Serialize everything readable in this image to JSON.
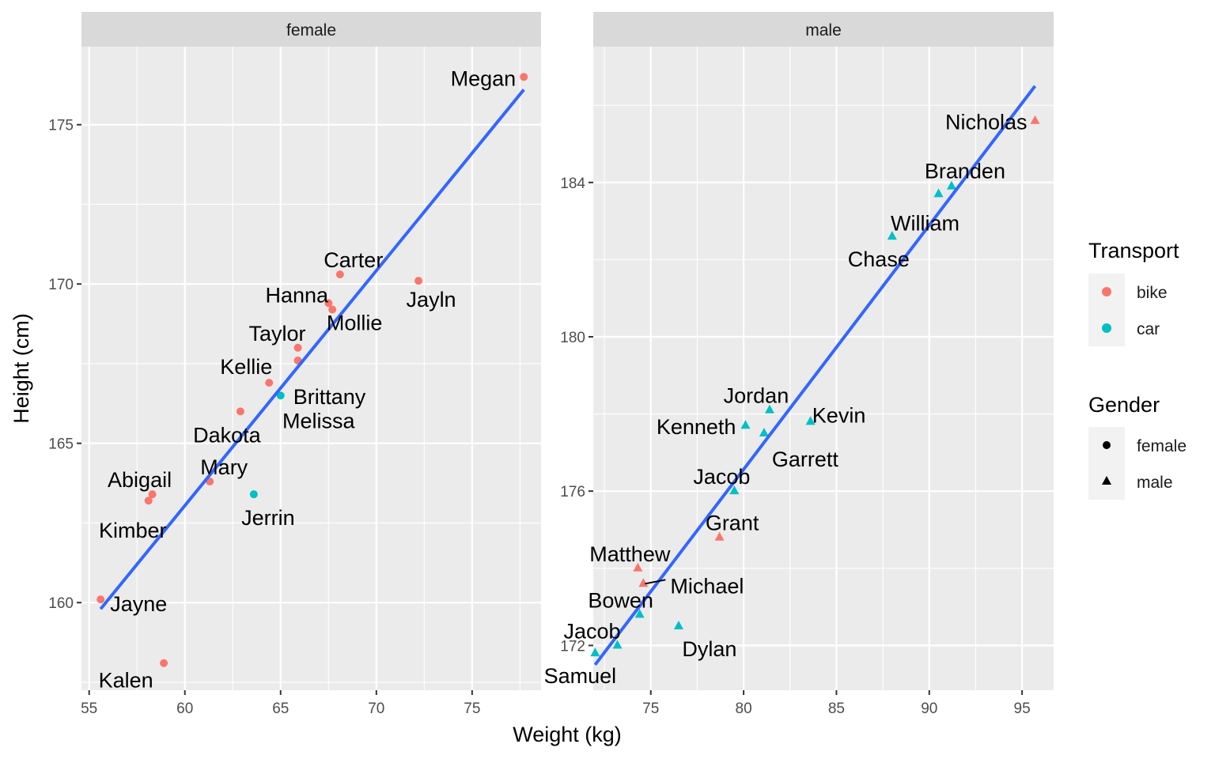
{
  "chart_data": {
    "type": "scatter",
    "xlabel": "Weight (kg)",
    "ylabel": "Height (cm)",
    "colors": {
      "bike": "#F8766D",
      "car": "#00BFC4",
      "fit_line": "#3366FF"
    },
    "panels": [
      {
        "strip": "female",
        "xlim": [
          54.6,
          78.6
        ],
        "ylim": [
          157.25,
          177.45
        ],
        "xticks": [
          55,
          60,
          65,
          70,
          75
        ],
        "yticks": [
          160,
          165,
          170,
          175
        ],
        "fit": {
          "x": [
            55.6,
            77.7
          ],
          "y": [
            159.8,
            176.1
          ]
        },
        "points": [
          {
            "label": "Megan",
            "x": 77.7,
            "y": 176.5,
            "transport": "bike"
          },
          {
            "label": "Jayln",
            "x": 72.2,
            "y": 170.1,
            "transport": "bike"
          },
          {
            "label": "Carter",
            "x": 68.1,
            "y": 170.3,
            "transport": "bike"
          },
          {
            "label": "Hanna",
            "x": 67.5,
            "y": 169.4,
            "transport": "bike"
          },
          {
            "label": "Mollie",
            "x": 67.7,
            "y": 169.2,
            "transport": "bike"
          },
          {
            "label": "Taylor",
            "x": 65.9,
            "y": 168.0,
            "transport": "bike"
          },
          {
            "label": "Brittany",
            "x": 65.9,
            "y": 167.6,
            "transport": "bike"
          },
          {
            "label": "Kellie",
            "x": 64.4,
            "y": 166.9,
            "transport": "bike"
          },
          {
            "label": "Melissa",
            "x": 65.0,
            "y": 166.5,
            "transport": "car"
          },
          {
            "label": "Dakota",
            "x": 62.9,
            "y": 166.0,
            "transport": "bike"
          },
          {
            "label": "Mary",
            "x": 61.3,
            "y": 163.8,
            "transport": "bike"
          },
          {
            "label": "Jerrin",
            "x": 63.6,
            "y": 163.4,
            "transport": "car"
          },
          {
            "label": "Abigail",
            "x": 58.3,
            "y": 163.4,
            "transport": "bike"
          },
          {
            "label": "Kimber",
            "x": 58.1,
            "y": 163.2,
            "transport": "bike"
          },
          {
            "label": "Jayne",
            "x": 55.6,
            "y": 160.1,
            "transport": "bike"
          },
          {
            "label": "Kalen",
            "x": 58.9,
            "y": 158.1,
            "transport": "bike"
          }
        ]
      },
      {
        "strip": "male",
        "xlim": [
          71.9,
          96.7
        ],
        "ylim": [
          170.84,
          187.52
        ],
        "xticks": [
          75,
          80,
          85,
          90,
          95
        ],
        "yticks": [
          172,
          176,
          180,
          184
        ],
        "fit": {
          "x": [
            72.0,
            95.7
          ],
          "y": [
            171.5,
            186.5
          ]
        },
        "points": [
          {
            "label": "Nicholas",
            "x": 95.7,
            "y": 185.6,
            "transport": "bike"
          },
          {
            "label": "Branden",
            "x": 91.2,
            "y": 183.9,
            "transport": "car"
          },
          {
            "label": "William",
            "x": 90.5,
            "y": 183.7,
            "transport": "car"
          },
          {
            "label": "Chase",
            "x": 88.0,
            "y": 182.6,
            "transport": "car"
          },
          {
            "label": "Jordan",
            "x": 81.4,
            "y": 178.1,
            "transport": "car"
          },
          {
            "label": "Kevin",
            "x": 83.6,
            "y": 177.8,
            "transport": "car"
          },
          {
            "label": "Kenneth",
            "x": 80.1,
            "y": 177.7,
            "transport": "car"
          },
          {
            "label": "Garrett",
            "x": 81.1,
            "y": 177.5,
            "transport": "car"
          },
          {
            "label": "Jacob",
            "x": 79.5,
            "y": 176.0,
            "transport": "car"
          },
          {
            "label": "Grant",
            "x": 78.7,
            "y": 174.8,
            "transport": "bike"
          },
          {
            "label": "Matthew",
            "x": 74.3,
            "y": 174.0,
            "transport": "bike"
          },
          {
            "label": "Michael",
            "x": 74.6,
            "y": 173.6,
            "transport": "bike"
          },
          {
            "label": "Bowen",
            "x": 74.4,
            "y": 172.8,
            "transport": "car"
          },
          {
            "label": "Dylan",
            "x": 76.5,
            "y": 172.5,
            "transport": "car"
          },
          {
            "label": "Jacob",
            "x": 73.2,
            "y": 172.0,
            "transport": "car"
          },
          {
            "label": "Samuel",
            "x": 72.0,
            "y": 171.8,
            "transport": "car"
          }
        ]
      }
    ],
    "legend": {
      "placement": "right",
      "transport": {
        "title": "Transport",
        "items": [
          "bike",
          "car"
        ]
      },
      "gender": {
        "title": "Gender",
        "items": [
          "female",
          "male"
        ]
      }
    }
  }
}
